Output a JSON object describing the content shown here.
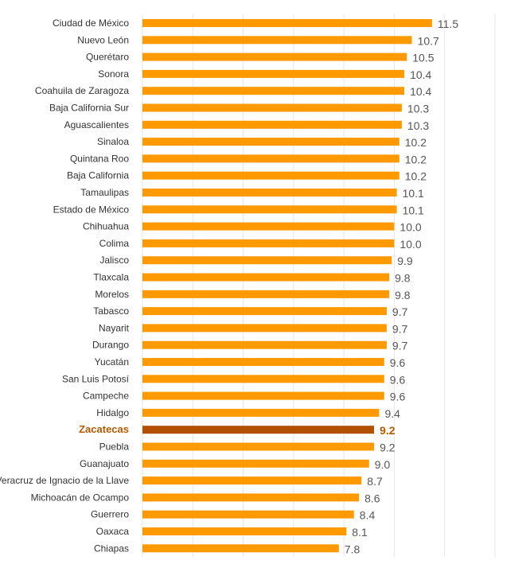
{
  "chart_data": {
    "type": "bar",
    "orientation": "horizontal",
    "title": "",
    "xlabel": "",
    "ylabel": "",
    "xlim": [
      0,
      14
    ],
    "grid": true,
    "highlight_category": "Zacatecas",
    "colors": {
      "bar": "#ff9900",
      "highlight": "#b35000",
      "highlight_text": "#b35a00"
    },
    "categories": [
      "Ciudad de México",
      "Nuevo León",
      "Querétaro",
      "Sonora",
      "Coahuila de Zaragoza",
      "Baja California Sur",
      "Aguascalientes",
      "Sinaloa",
      "Quintana Roo",
      "Baja California",
      "Tamaulipas",
      "Estado de México",
      "Chihuahua",
      "Colima",
      "Jalisco",
      "Tlaxcala",
      "Morelos",
      "Tabasco",
      "Nayarit",
      "Durango",
      "Yucatán",
      "San Luis Potosí",
      "Campeche",
      "Hidalgo",
      "Zacatecas",
      "Puebla",
      "Guanajuato",
      "Veracruz de Ignacio de la Llave",
      "Michoacán de Ocampo",
      "Guerrero",
      "Oaxaca",
      "Chiapas"
    ],
    "values": [
      11.5,
      10.7,
      10.5,
      10.4,
      10.4,
      10.3,
      10.3,
      10.2,
      10.2,
      10.2,
      10.1,
      10.1,
      10.0,
      10.0,
      9.9,
      9.8,
      9.8,
      9.7,
      9.7,
      9.7,
      9.6,
      9.6,
      9.6,
      9.4,
      9.2,
      9.2,
      9.0,
      8.7,
      8.6,
      8.4,
      8.1,
      7.8
    ]
  }
}
